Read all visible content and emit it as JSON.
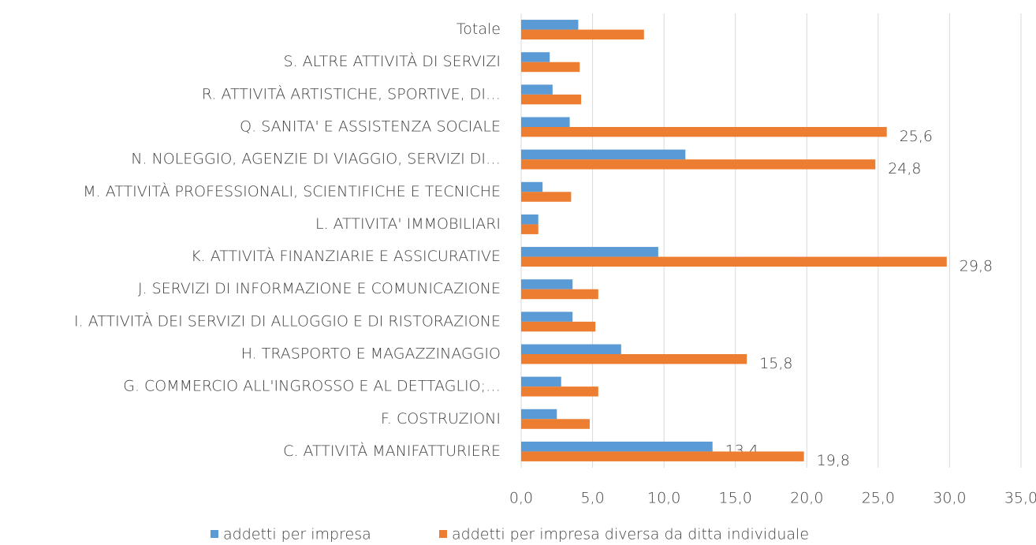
{
  "chart_data": {
    "type": "bar",
    "orientation": "horizontal",
    "categories": [
      "C. ATTIVITÀ MANIFATTURIERE",
      "F. COSTRUZIONI",
      "G. COMMERCIO ALL'INGROSSO E AL DETTAGLIO;…",
      "H. TRASPORTO E MAGAZZINAGGIO",
      "I. ATTIVITÀ DEI SERVIZI DI ALLOGGIO E DI RISTORAZIONE",
      "J. SERVIZI DI INFORMAZIONE E COMUNICAZIONE",
      "K. ATTIVITÀ FINANZIARIE E ASSICURATIVE",
      "L. ATTIVITA' IMMOBILIARI",
      "M. ATTIVITÀ PROFESSIONALI, SCIENTIFICHE E TECNICHE",
      "N. NOLEGGIO, AGENZIE DI VIAGGIO, SERVIZI DI…",
      "Q. SANITA' E ASSISTENZA SOCIALE",
      "R. ATTIVITÀ ARTISTICHE, SPORTIVE, DI…",
      "S. ALTRE ATTIVITÀ DI SERVIZI",
      "Totale"
    ],
    "series": [
      {
        "name": "addetti per impresa",
        "color": "#5b9bd5",
        "values": [
          13.4,
          2.5,
          2.8,
          7.0,
          3.6,
          3.6,
          9.6,
          1.2,
          1.5,
          11.5,
          3.4,
          2.2,
          2.0,
          4.0
        ],
        "value_labels": [
          "13,4",
          null,
          null,
          null,
          null,
          null,
          null,
          null,
          null,
          null,
          null,
          null,
          null,
          null
        ]
      },
      {
        "name": "addetti per impresa diversa da ditta individuale",
        "color": "#ed7d31",
        "values": [
          19.8,
          4.8,
          5.4,
          15.8,
          5.2,
          5.4,
          29.8,
          1.2,
          3.5,
          24.8,
          25.6,
          4.2,
          4.1,
          8.6
        ],
        "value_labels": [
          "19,8",
          null,
          null,
          "15,8",
          null,
          null,
          "29,8",
          null,
          null,
          "24,8",
          "25,6",
          null,
          null,
          null
        ]
      }
    ],
    "xlim": [
      0,
      35
    ],
    "xticks": [
      {
        "value": 0,
        "label": "0,0"
      },
      {
        "value": 5,
        "label": "5,0"
      },
      {
        "value": 10,
        "label": "10,0"
      },
      {
        "value": 15,
        "label": "15,0"
      },
      {
        "value": 20,
        "label": "20,0"
      },
      {
        "value": 25,
        "label": "25,0"
      },
      {
        "value": 30,
        "label": "30,0"
      },
      {
        "value": 35,
        "label": "35,0"
      }
    ],
    "grid": true,
    "legend": "bottom"
  }
}
